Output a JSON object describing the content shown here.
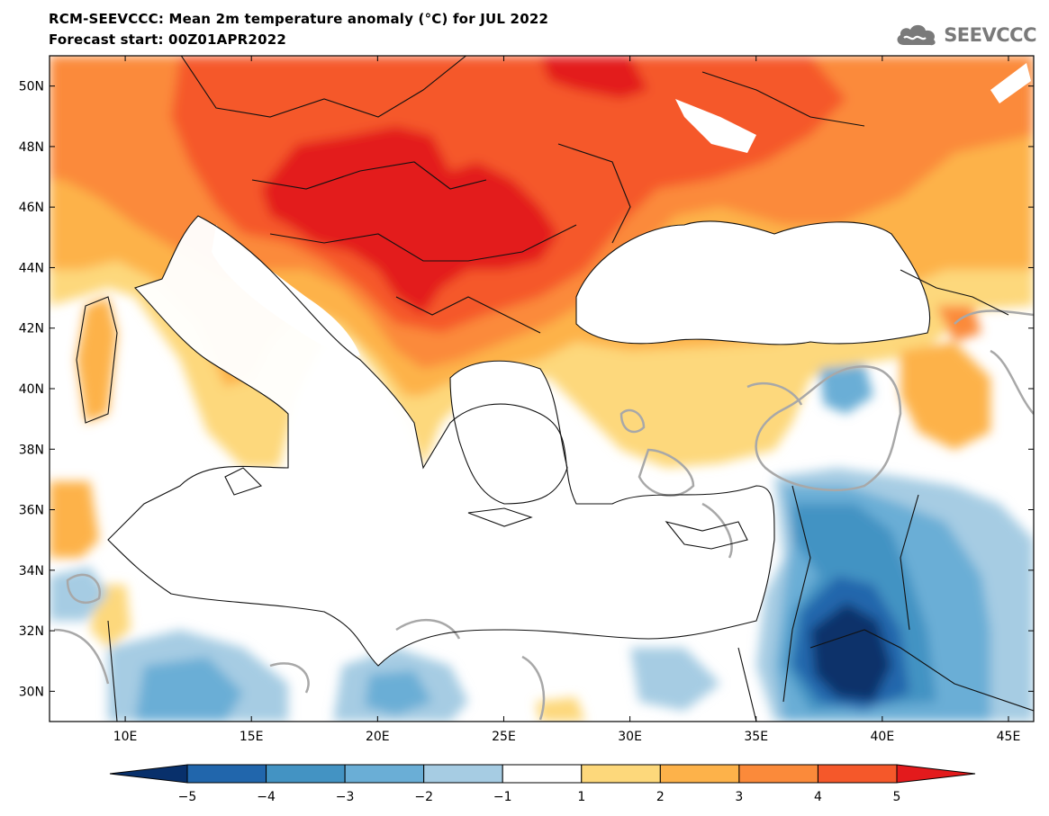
{
  "header": {
    "title": "RCM-SEEVCCC: Mean 2m temperature anomaly (°C) for JUL 2022",
    "subtitle": "Forecast start: 00Z01APR2022"
  },
  "logo": {
    "text": "SEEVCCC",
    "icon": "cloud-icon"
  },
  "map": {
    "lon_range": [
      7,
      46
    ],
    "lat_range": [
      29,
      51
    ],
    "lon_ticks": [
      {
        "value": 10,
        "label": "10E"
      },
      {
        "value": 15,
        "label": "15E"
      },
      {
        "value": 20,
        "label": "20E"
      },
      {
        "value": 25,
        "label": "25E"
      },
      {
        "value": 30,
        "label": "30E"
      },
      {
        "value": 35,
        "label": "35E"
      },
      {
        "value": 40,
        "label": "40E"
      },
      {
        "value": 45,
        "label": "45E"
      }
    ],
    "lat_ticks": [
      {
        "value": 50,
        "label": "50N"
      },
      {
        "value": 48,
        "label": "48N"
      },
      {
        "value": 46,
        "label": "46N"
      },
      {
        "value": 44,
        "label": "44N"
      },
      {
        "value": 42,
        "label": "42N"
      },
      {
        "value": 40,
        "label": "40N"
      },
      {
        "value": 38,
        "label": "38N"
      },
      {
        "value": 36,
        "label": "36N"
      },
      {
        "value": 34,
        "label": "34N"
      },
      {
        "value": 32,
        "label": "32N"
      },
      {
        "value": 30,
        "label": "30N"
      }
    ]
  },
  "colorbar": {
    "levels": [
      "−5",
      "−4",
      "−3",
      "−2",
      "−1",
      "1",
      "2",
      "3",
      "4",
      "5"
    ],
    "colors": [
      "#08306b",
      "#2166ac",
      "#4393c3",
      "#6aaed6",
      "#a6cce3",
      "#ffffff",
      "#fdd87b",
      "#fdb24a",
      "#fb8a3a",
      "#f5582a",
      "#e31a1c"
    ]
  },
  "colors": {
    "warm_1": "#fdd87b",
    "warm_2": "#fdb24a",
    "warm_3": "#fb8a3a",
    "warm_4": "#f5582a",
    "warm_5": "#e31a1c",
    "cool_1": "#a6cce3",
    "cool_2": "#6aaed6",
    "cool_3": "#4393c3",
    "cool_4": "#2166ac",
    "cool_5": "#08306b",
    "contour": "#a8a8a8"
  }
}
